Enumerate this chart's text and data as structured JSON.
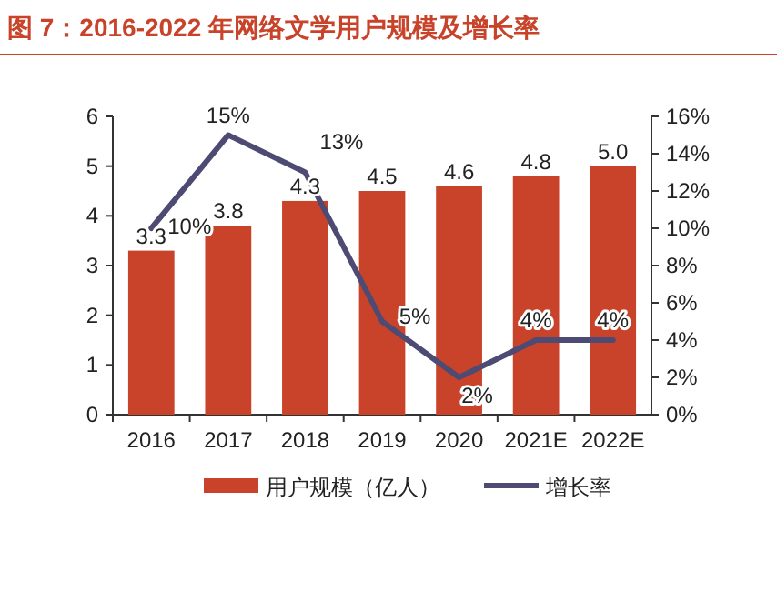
{
  "chart_data": {
    "type": "bar",
    "title": "图 7：2016-2022 年网络文学用户规模及增长率",
    "categories": [
      "2016",
      "2017",
      "2018",
      "2019",
      "2020",
      "2021E",
      "2022E"
    ],
    "series": [
      {
        "name": "用户规模（亿人）",
        "color": "#c8432a",
        "values": [
          3.3,
          3.8,
          4.3,
          4.5,
          4.6,
          4.8,
          5.0
        ],
        "value_labels": [
          "3.3",
          "3.8",
          "4.3",
          "4.5",
          "4.6",
          "4.8",
          "5.0"
        ]
      },
      {
        "name": "增长率",
        "type": "line",
        "axis": "y2",
        "color": "#4d4b73",
        "values": [
          10,
          15,
          13,
          5,
          2,
          4,
          4
        ],
        "value_labels": [
          "10%",
          "15%",
          "13%",
          "5%",
          "2%",
          "4%",
          "4%"
        ]
      }
    ],
    "ylim": [
      0,
      6
    ],
    "yticks": [
      0,
      1,
      2,
      3,
      4,
      5,
      6
    ],
    "y2lim": [
      0,
      16
    ],
    "y2ticks": [
      {
        "value": 0,
        "label": "0%"
      },
      {
        "value": 2,
        "label": "2%"
      },
      {
        "value": 4,
        "label": "4%"
      },
      {
        "value": 6,
        "label": "6%"
      },
      {
        "value": 8,
        "label": "8%"
      },
      {
        "value": 10,
        "label": "10%"
      },
      {
        "value": 12,
        "label": "12%"
      },
      {
        "value": 14,
        "label": "14%"
      },
      {
        "value": 16,
        "label": "16%"
      }
    ],
    "grid": false,
    "legend": "bottom",
    "marker": "none",
    "line_style": "solid"
  }
}
